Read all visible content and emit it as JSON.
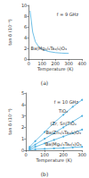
{
  "chart_data": [
    {
      "type": "line",
      "title": "(a)",
      "annotation": "f = 9 GHz",
      "x_label": "Temperature (K)",
      "y_label": "tan δ (10⁻⁴)",
      "x": [
        10,
        20,
        30,
        50,
        75,
        100,
        150,
        200,
        250,
        300
      ],
      "series": [
        {
          "name": "Ba(Mg₁/₃Ta₂/₃)O₃",
          "color": "#4aaee0",
          "marker": "none",
          "values": [
            9,
            7,
            5,
            3.2,
            2.3,
            1.8,
            1.4,
            1.2,
            1.1,
            1.05
          ]
        }
      ],
      "xlim": [
        0,
        400
      ],
      "xticks": [
        0,
        100,
        200,
        300,
        400
      ],
      "ylim": [
        0,
        10
      ],
      "yticks": [
        0,
        2,
        4,
        6,
        8,
        10
      ],
      "grid": false
    },
    {
      "type": "line",
      "title": "(b)",
      "annotation": "f = 10 GHz",
      "x_label": "Temperature (K)",
      "y_label": "tan δ (10⁻⁴)",
      "x": [
        20,
        50,
        100,
        150,
        200,
        250,
        300
      ],
      "series": [
        {
          "name": "TiO₂",
          "color": "#4aaee0",
          "marker": "circle",
          "values": [
            0.3,
            0.8,
            1.6,
            2.4,
            3.1,
            3.8,
            4.4
          ]
        },
        {
          "name": "(Zr, Sn)TiO₄",
          "color": "#4aaee0",
          "marker": "circle",
          "values": [
            0.2,
            0.5,
            1.0,
            1.5,
            2.0,
            2.5,
            3.0
          ]
        },
        {
          "name": "Ba(Zn₁/₃Ta₂/₃)O₃",
          "color": "#4aaee0",
          "marker": "circle",
          "values": [
            0.1,
            0.3,
            0.6,
            0.9,
            1.2,
            1.5,
            1.8
          ]
        },
        {
          "name": "Ba(Mg₁/₃Ta₂/₃)O₃",
          "color": "#4aaee0",
          "marker": "circle",
          "values": [
            0.05,
            0.08,
            0.12,
            0.16,
            0.2,
            0.25,
            0.3
          ]
        }
      ],
      "xlim": [
        0,
        300
      ],
      "xticks": [
        0,
        100,
        200,
        300
      ],
      "ylim": [
        0,
        5
      ],
      "yticks": [
        0,
        1,
        2,
        3,
        4,
        5
      ],
      "grid": false
    }
  ]
}
